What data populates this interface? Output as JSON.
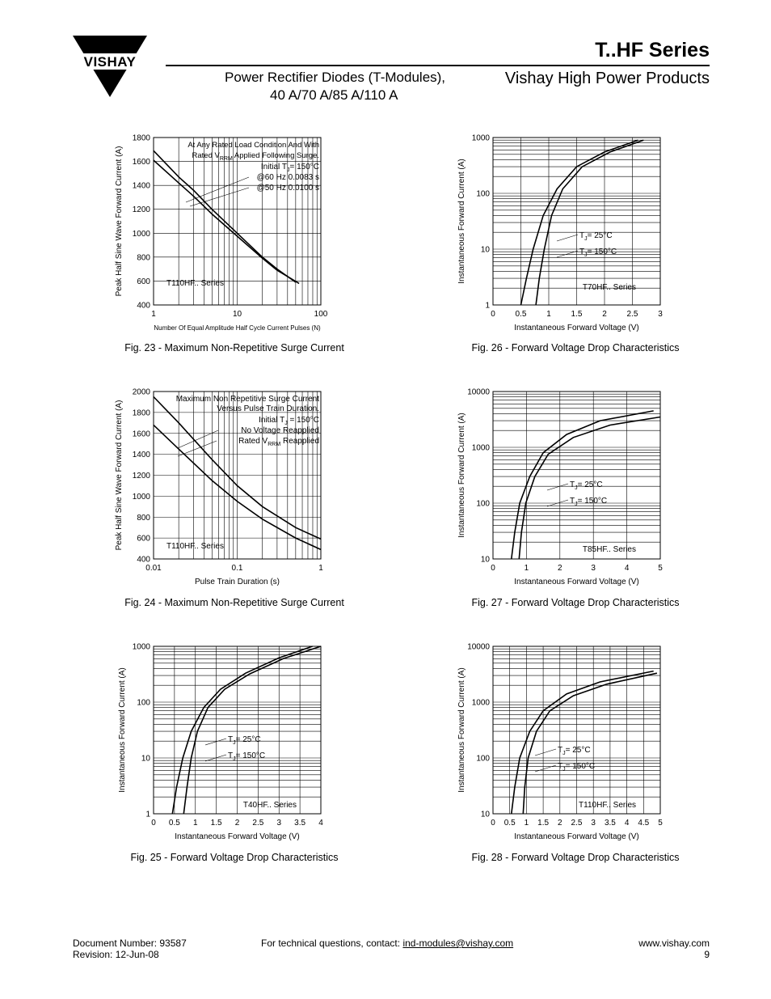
{
  "header": {
    "series_title": "T..HF Series",
    "subtitle_line1": "Power Rectifier Diodes (T-Modules),",
    "subtitle_line2": "40 A/70 A/85 A/110 A",
    "brand_line": "Vishay High Power Products",
    "logo_text": "VISHAY",
    "logo_icon": "vishay-triangle-logo"
  },
  "footer": {
    "doc_number": "Document Number: 93587",
    "revision": "Revision: 12-Jun-08",
    "contact_prefix": "For technical questions, contact: ",
    "contact_email": "ind-modules@vishay.com",
    "website": "www.vishay.com",
    "page_number": "9"
  },
  "chart_data": [
    {
      "id": "fig23",
      "type": "line",
      "caption": "Fig. 23 - Maximum Non-Repetitive Surge Current",
      "xlabel": "Number Of Equal Amplitude Half Cycle Current Pulses (N)",
      "ylabel": "Peak Half Sine Wave Forward Current (A)",
      "xscale": "log",
      "yscale": "linear",
      "xlim": [
        1,
        100
      ],
      "ylim": [
        400,
        1800
      ],
      "xticks": [
        1,
        10,
        100
      ],
      "xticklabels": [
        "1",
        "10",
        "100"
      ],
      "yticks": [
        400,
        600,
        800,
        1000,
        1200,
        1400,
        1600,
        1800
      ],
      "yticklabels": [
        "400",
        "600",
        "800",
        "1000",
        "1200",
        "1400",
        "1600",
        "1800"
      ],
      "annotations": [
        "At Any Rated Load Condition And With",
        "Rated V",
        "RRM",
        " Applied Following Surge.",
        "Initial T",
        "J",
        "= 150°C",
        "@60 Hz 0.0083 s",
        "@50 Hz 0.0100 s"
      ],
      "series_label": "T110HF.. Series",
      "series": [
        {
          "x": [
            1,
            2,
            3,
            5,
            10,
            20,
            30,
            50
          ],
          "y": [
            1690,
            1470,
            1360,
            1200,
            1000,
            800,
            700,
            590
          ]
        },
        {
          "x": [
            1,
            2,
            3,
            5,
            10,
            20,
            30,
            55
          ],
          "y": [
            1610,
            1420,
            1310,
            1160,
            975,
            790,
            690,
            580
          ]
        }
      ]
    },
    {
      "id": "fig24",
      "type": "line",
      "caption": "Fig. 24 - Maximum Non-Repetitive Surge Current",
      "xlabel": "Pulse Train Duration (s)",
      "ylabel": "Peak Half Sine Wave Forward Current (A)",
      "xscale": "log",
      "yscale": "linear",
      "xlim": [
        0.01,
        1
      ],
      "ylim": [
        400,
        2000
      ],
      "xticks": [
        0.01,
        0.1,
        1
      ],
      "xticklabels": [
        "0.01",
        "0.1",
        "1"
      ],
      "yticks": [
        400,
        600,
        800,
        1000,
        1200,
        1400,
        1600,
        1800,
        2000
      ],
      "yticklabels": [
        "400",
        "600",
        "800",
        "1000",
        "1200",
        "1400",
        "1600",
        "1800",
        "2000"
      ],
      "annotations": [
        "Maximum Non Repetitive Surge Current",
        "Versus Pulse Train Duration.",
        "Initial T",
        "J",
        " = 150°C",
        "No Voltage Reapplied",
        "Rated V",
        "RRM",
        " Reapplied"
      ],
      "series_label": "T110HF.. Series",
      "series": [
        {
          "x": [
            0.01,
            0.02,
            0.05,
            0.1,
            0.2,
            0.5,
            1
          ],
          "y": [
            1950,
            1700,
            1350,
            1100,
            900,
            700,
            590
          ]
        },
        {
          "x": [
            0.01,
            0.02,
            0.05,
            0.1,
            0.2,
            0.5,
            1
          ],
          "y": [
            1680,
            1450,
            1150,
            950,
            780,
            600,
            490
          ]
        }
      ]
    },
    {
      "id": "fig25",
      "type": "line",
      "caption": "Fig. 25 - Forward Voltage Drop Characteristics",
      "xlabel": "Instantaneous Forward Voltage (V)",
      "ylabel": "Instantaneous Forward Current (A)",
      "xscale": "linear",
      "yscale": "log",
      "xlim": [
        0,
        4
      ],
      "ylim": [
        1,
        1000
      ],
      "xticks": [
        0,
        0.5,
        1,
        1.5,
        2,
        2.5,
        3,
        3.5,
        4
      ],
      "xticklabels": [
        "0",
        "0.5",
        "1",
        "1.5",
        "2",
        "2.5",
        "3",
        "3.5",
        "4"
      ],
      "yticks": [
        1,
        10,
        100,
        1000
      ],
      "yticklabels": [
        "1",
        "10",
        "100",
        "1000"
      ],
      "legend": [
        [
          "T",
          "J",
          "= 25°C"
        ],
        [
          "T",
          "J",
          "= 150°C"
        ]
      ],
      "series_label": "T40HF.. Series",
      "series": [
        {
          "x": [
            0.45,
            0.55,
            0.7,
            0.9,
            1.2,
            1.6,
            2.2,
            3.0,
            3.8
          ],
          "y": [
            1,
            3,
            10,
            30,
            80,
            170,
            330,
            620,
            1000
          ]
        },
        {
          "x": [
            0.72,
            0.8,
            0.9,
            1.05,
            1.3,
            1.7,
            2.3,
            3.1,
            4.0
          ],
          "y": [
            1,
            3,
            10,
            30,
            80,
            170,
            320,
            600,
            1000
          ]
        }
      ]
    },
    {
      "id": "fig26",
      "type": "line",
      "caption": "Fig. 26 - Forward Voltage Drop Characteristics",
      "xlabel": "Instantaneous Forward Voltage (V)",
      "ylabel": "Instantaneous Forward Current (A)",
      "xscale": "linear",
      "yscale": "log",
      "xlim": [
        0,
        3
      ],
      "ylim": [
        1,
        1000
      ],
      "xticks": [
        0,
        0.5,
        1,
        1.5,
        2,
        2.5,
        3
      ],
      "xticklabels": [
        "0",
        "0.5",
        "1",
        "1.5",
        "2",
        "2.5",
        "3"
      ],
      "yticks": [
        1,
        10,
        100,
        1000
      ],
      "yticklabels": [
        "1",
        "10",
        "100",
        "1000"
      ],
      "legend": [
        [
          "T",
          "J",
          "= 25°C"
        ],
        [
          "T",
          "J",
          "= 150°C"
        ]
      ],
      "series_label": "T70HF.. Series",
      "series": [
        {
          "x": [
            0.5,
            0.6,
            0.72,
            0.9,
            1.15,
            1.5,
            2.0,
            2.6
          ],
          "y": [
            1,
            3,
            10,
            40,
            120,
            300,
            550,
            900
          ]
        },
        {
          "x": [
            0.77,
            0.83,
            0.92,
            1.05,
            1.25,
            1.6,
            2.1,
            2.7
          ],
          "y": [
            1,
            3,
            10,
            40,
            120,
            300,
            550,
            900
          ]
        }
      ]
    },
    {
      "id": "fig27",
      "type": "line",
      "caption": "Fig. 27 - Forward Voltage Drop Characteristics",
      "xlabel": "Instantaneous Forward Voltage (V)",
      "ylabel": "Instantaneous Forward Current (A)",
      "xscale": "linear",
      "yscale": "log",
      "xlim": [
        0,
        5
      ],
      "ylim": [
        10,
        10000
      ],
      "xticks": [
        0,
        1,
        2,
        3,
        4,
        5
      ],
      "xticklabels": [
        "0",
        "1",
        "2",
        "3",
        "4",
        "5"
      ],
      "yticks": [
        10,
        100,
        1000,
        10000
      ],
      "yticklabels": [
        "10",
        "100",
        "1000",
        "10000"
      ],
      "legend": [
        [
          "T",
          "J",
          "= 25°C"
        ],
        [
          "T",
          "J",
          "= 150°C"
        ]
      ],
      "series_label": "T85HF.. Series",
      "series": [
        {
          "x": [
            0.55,
            0.65,
            0.8,
            1.1,
            1.5,
            2.2,
            3.2,
            4.8
          ],
          "y": [
            10,
            30,
            100,
            300,
            800,
            1700,
            3000,
            4500
          ]
        },
        {
          "x": [
            0.78,
            0.85,
            0.98,
            1.25,
            1.65,
            2.4,
            3.5,
            5.0
          ],
          "y": [
            10,
            30,
            100,
            300,
            750,
            1500,
            2500,
            3500
          ]
        }
      ]
    },
    {
      "id": "fig28",
      "type": "line",
      "caption": "Fig. 28 - Forward Voltage Drop Characteristics",
      "xlabel": "Instantaneous Forward Voltage (V)",
      "ylabel": "Instantaneous Forward Current (A)",
      "xscale": "linear",
      "yscale": "log",
      "xlim": [
        0,
        5
      ],
      "ylim": [
        10,
        10000
      ],
      "xticks": [
        0,
        0.5,
        1,
        1.5,
        2,
        2.5,
        3,
        3.5,
        4,
        4.5,
        5
      ],
      "xticklabels": [
        "0",
        "0.5",
        "1",
        "1.5",
        "2",
        "2.5",
        "3",
        "3.5",
        "4",
        "4.5",
        "5"
      ],
      "yticks": [
        10,
        100,
        1000,
        10000
      ],
      "yticklabels": [
        "10",
        "100",
        "1000",
        "10000"
      ],
      "legend": [
        [
          "T",
          "J",
          "= 25°C"
        ],
        [
          "T",
          "J",
          "= 150°C"
        ]
      ],
      "series_label": "T110HF.. Series",
      "series": [
        {
          "x": [
            0.55,
            0.65,
            0.8,
            1.1,
            1.5,
            2.2,
            3.2,
            4.8
          ],
          "y": [
            10,
            30,
            100,
            300,
            700,
            1400,
            2300,
            3600
          ]
        },
        {
          "x": [
            0.9,
            0.95,
            1.05,
            1.3,
            1.7,
            2.4,
            3.4,
            4.9
          ],
          "y": [
            10,
            30,
            100,
            300,
            700,
            1300,
            2100,
            3300
          ]
        }
      ]
    }
  ]
}
